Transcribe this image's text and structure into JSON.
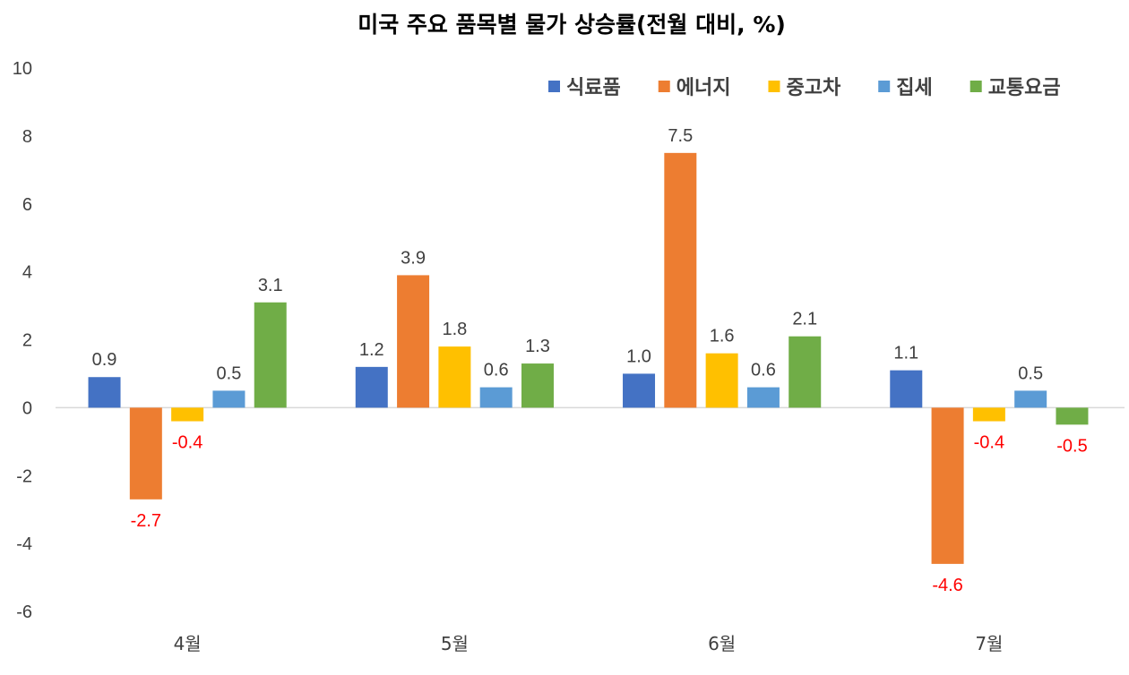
{
  "chart_data": {
    "type": "bar",
    "title": "미국 주요 품목별 물가 상승률(전월 대비, %)",
    "categories": [
      "4월",
      "5월",
      "6월",
      "7월"
    ],
    "series": [
      {
        "name": "식료품",
        "color": "#4472C4",
        "values": [
          0.9,
          1.2,
          1.0,
          1.1
        ]
      },
      {
        "name": "에너지",
        "color": "#ED7D31",
        "values": [
          -2.7,
          3.9,
          7.5,
          -4.6
        ]
      },
      {
        "name": "중고차",
        "color": "#FFC000",
        "values": [
          -0.4,
          1.8,
          1.6,
          -0.4
        ]
      },
      {
        "name": "집세",
        "color": "#5B9BD5",
        "values": [
          0.5,
          0.6,
          0.6,
          0.5
        ]
      },
      {
        "name": "교통요금",
        "color": "#70AD47",
        "values": [
          3.1,
          1.3,
          2.1,
          -0.5
        ]
      }
    ],
    "data_labels": [
      [
        "0.9",
        "-2.7",
        "-0.4",
        "0.5",
        "3.1"
      ],
      [
        "1.2",
        "3.9",
        "1.8",
        "0.6",
        "1.3"
      ],
      [
        "1.0",
        "7.5",
        "1.6",
        "0.6",
        "2.1"
      ],
      [
        "1.1",
        "-4.6",
        "-0.4",
        "0.5",
        "-0.5"
      ]
    ],
    "ylim": [
      -6,
      10
    ],
    "yticks": [
      "-6",
      "-4",
      "-2",
      "0",
      "2",
      "4",
      "6",
      "8",
      "10"
    ],
    "grid": false,
    "legend_position": "top-right",
    "positive_label_color": "#404040",
    "negative_label_color": "#FF0000"
  }
}
